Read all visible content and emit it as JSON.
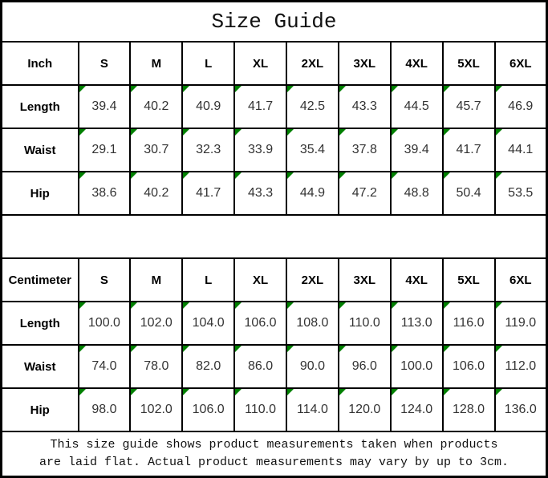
{
  "title": "Size Guide",
  "colors": {
    "flag_green": "#008000"
  },
  "sizes": [
    "S",
    "M",
    "L",
    "XL",
    "2XL",
    "3XL",
    "4XL",
    "5XL",
    "6XL"
  ],
  "inch": {
    "unit": "Inch",
    "rows": [
      {
        "label": "Length",
        "values": [
          "39.4",
          "40.2",
          "40.9",
          "41.7",
          "42.5",
          "43.3",
          "44.5",
          "45.7",
          "46.9"
        ]
      },
      {
        "label": "Waist",
        "values": [
          "29.1",
          "30.7",
          "32.3",
          "33.9",
          "35.4",
          "37.8",
          "39.4",
          "41.7",
          "44.1"
        ]
      },
      {
        "label": "Hip",
        "values": [
          "38.6",
          "40.2",
          "41.7",
          "43.3",
          "44.9",
          "47.2",
          "48.8",
          "50.4",
          "53.5"
        ]
      }
    ]
  },
  "cm": {
    "unit": "Centimeter",
    "rows": [
      {
        "label": "Length",
        "values": [
          "100.0",
          "102.0",
          "104.0",
          "106.0",
          "108.0",
          "110.0",
          "113.0",
          "116.0",
          "119.0"
        ]
      },
      {
        "label": "Waist",
        "values": [
          "74.0",
          "78.0",
          "82.0",
          "86.0",
          "90.0",
          "96.0",
          "100.0",
          "106.0",
          "112.0"
        ]
      },
      {
        "label": "Hip",
        "values": [
          "98.0",
          "102.0",
          "106.0",
          "110.0",
          "114.0",
          "120.0",
          "124.0",
          "128.0",
          "136.0"
        ]
      }
    ]
  },
  "footer": {
    "line1": "This size guide shows product measurements taken when products",
    "line2": "are laid flat. Actual product measurements may vary by up to 3cm."
  }
}
